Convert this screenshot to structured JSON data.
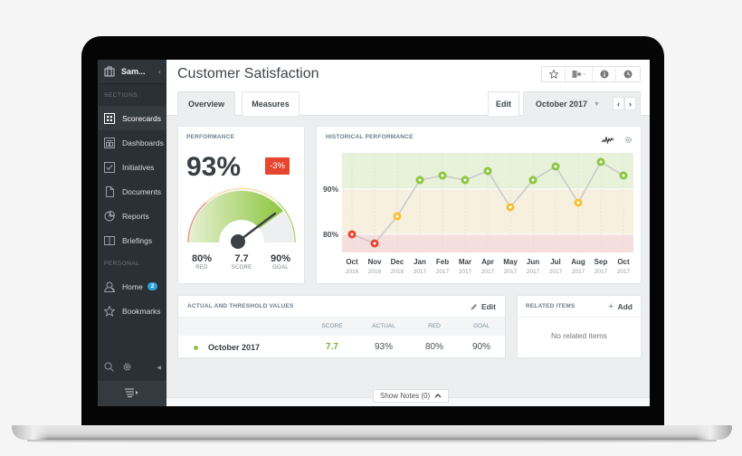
{
  "app": {
    "org_name": "Sam...",
    "page_title": "Customer Satisfaction"
  },
  "sidebar": {
    "sections_label": "SECTIONS",
    "personal_label": "PERSONAL",
    "items": [
      {
        "label": "Scorecards",
        "icon": "scorecard-grid-icon",
        "active": true
      },
      {
        "label": "Dashboards",
        "icon": "dashboard-icon"
      },
      {
        "label": "Initiatives",
        "icon": "checkbox-icon"
      },
      {
        "label": "Documents",
        "icon": "document-icon"
      },
      {
        "label": "Reports",
        "icon": "pie-chart-icon"
      },
      {
        "label": "Briefings",
        "icon": "book-icon"
      }
    ],
    "personal_items": [
      {
        "label": "Home",
        "icon": "user-icon",
        "badge": "2"
      },
      {
        "label": "Bookmarks",
        "icon": "star-icon"
      }
    ]
  },
  "header": {
    "tabs": [
      {
        "label": "Overview",
        "active": true
      },
      {
        "label": "Measures",
        "active": false
      }
    ],
    "edit_label": "Edit",
    "period": "October 2017",
    "toolbar_icons": [
      "star-icon",
      "export-icon",
      "info-icon",
      "clock-icon"
    ]
  },
  "performance": {
    "title": "PERFORMANCE",
    "value": "93%",
    "change": "-3%",
    "change_color": "#e8452f",
    "stats": [
      {
        "value": "80%",
        "label": "RED"
      },
      {
        "value": "7.7",
        "label": "SCORE"
      },
      {
        "value": "90%",
        "label": "GOAL"
      }
    ]
  },
  "history": {
    "title": "HISTORICAL PERFORMANCE"
  },
  "chart_data": {
    "type": "line",
    "title": "HISTORICAL PERFORMANCE",
    "categories": [
      "Oct 2016",
      "Nov 2016",
      "Dec 2016",
      "Jan 2017",
      "Feb 2017",
      "Mar 2017",
      "Apr 2017",
      "May 2017",
      "Jun 2017",
      "Jul 2017",
      "Aug 2017",
      "Sep 2017",
      "Oct 2017"
    ],
    "x_labels": [
      {
        "month": "Oct",
        "year": "2016"
      },
      {
        "month": "Nov",
        "year": "2016"
      },
      {
        "month": "Dec",
        "year": "2016"
      },
      {
        "month": "Jan",
        "year": "2017"
      },
      {
        "month": "Feb",
        "year": "2017"
      },
      {
        "month": "Mar",
        "year": "2017"
      },
      {
        "month": "Apr",
        "year": "2017"
      },
      {
        "month": "May",
        "year": "2017"
      },
      {
        "month": "Jun",
        "year": "2017"
      },
      {
        "month": "Jul",
        "year": "2017"
      },
      {
        "month": "Aug",
        "year": "2017"
      },
      {
        "month": "Sep",
        "year": "2017"
      },
      {
        "month": "Oct",
        "year": "2017"
      }
    ],
    "series": [
      {
        "name": "Actual",
        "values": [
          80,
          78,
          84,
          92,
          93,
          92,
          94,
          86,
          92,
          95,
          87,
          96,
          93
        ]
      }
    ],
    "y_ticks": [
      "80%",
      "90%"
    ],
    "thresholds": {
      "red": 80,
      "goal": 90
    },
    "bands": [
      {
        "name": "red",
        "from": 76,
        "to": 80,
        "color": "#f6dede"
      },
      {
        "name": "yellow",
        "from": 80,
        "to": 90,
        "color": "#f7f0df"
      },
      {
        "name": "green",
        "from": 90,
        "to": 98,
        "color": "#e8f1da"
      }
    ],
    "ylim": [
      76,
      98
    ],
    "point_colors": {
      "red": "#e8452f",
      "yellow": "#f5c034",
      "green": "#8dc63f"
    },
    "grid": true,
    "legend": "none"
  },
  "actual_threshold": {
    "title": "ACTUAL AND THRESHOLD VALUES",
    "edit_label": "Edit",
    "columns": [
      "SCORE",
      "ACTUAL",
      "RED",
      "GOAL"
    ],
    "rows": [
      {
        "period": "October 2017",
        "score": "7.7",
        "actual": "93%",
        "red": "80%",
        "goal": "90%",
        "status_color": "#8dc63f"
      }
    ]
  },
  "related": {
    "title": "RELATED ITEMS",
    "add_label": "Add",
    "empty_text": "No related items"
  },
  "notes": {
    "label": "Show Notes (0)"
  }
}
